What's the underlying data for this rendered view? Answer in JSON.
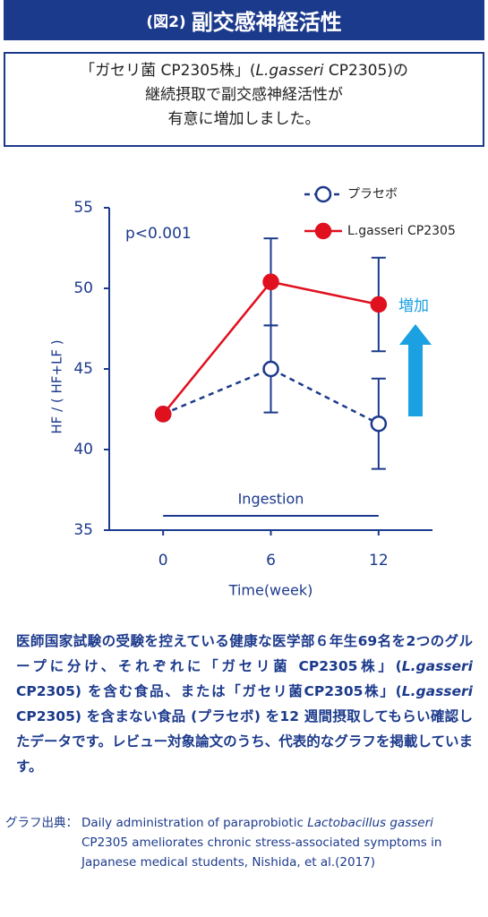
{
  "header": {
    "prefix": "(図2)",
    "title": "副交感神経活性"
  },
  "box": {
    "lines": [
      [
        "「ガセリ菌 CP2305株」(",
        "L.gasseri",
        " CP2305)の"
      ],
      [
        "継続摂取で副交感神経活性が"
      ],
      [
        "有意に増加しました。"
      ]
    ]
  },
  "chart_data": {
    "type": "line",
    "x_label": "Time(week)",
    "y_label": "HF / ( HF+LF )",
    "x": [
      0,
      6,
      12
    ],
    "series": [
      {
        "name": "プラセボ",
        "color": "#1c3a8c",
        "values": [
          42.2,
          45,
          41.6
        ],
        "errors": [
          null,
          2.7,
          2.8
        ]
      },
      {
        "name": "L.gasseri CP2305",
        "color": "#e0101f",
        "values": [
          42.2,
          50.4,
          49
        ],
        "errors": [
          null,
          2.7,
          2.9
        ]
      }
    ],
    "xlim": [
      -3,
      15
    ],
    "xticks": [
      0,
      6,
      12
    ],
    "ylim": [
      35,
      55
    ],
    "yticks": [
      35,
      40,
      45,
      50,
      55
    ],
    "annotations": {
      "p_value": "p<0.001",
      "increase": "増加",
      "period": "Ingestion"
    }
  },
  "body": {
    "pieces": [
      "医師国家試験の受験を控えている健康な医学部６年生69名を2つのグループに分け、それぞれに「ガセリ菌 CP2305株」(",
      "L.gasseri",
      " CP2305) を含む食品、または「ガセリ菌CP2305株」(",
      "L.gasseri",
      " CP2305) を含まない食品 (プラセボ) を12 週間摂取してもらい確認したデータです。レビュー対象論文のうち、代表的なグラフを掲載しています。"
    ]
  },
  "source": {
    "label": "グラフ出典：",
    "pieces": [
      "Daily administration of paraprobiotic ",
      "Lactobacillus gasseri",
      " CP2305 ameliorates chronic stress-associated symptoms in Japanese medical students, Nishida, et al.(2017)"
    ]
  }
}
